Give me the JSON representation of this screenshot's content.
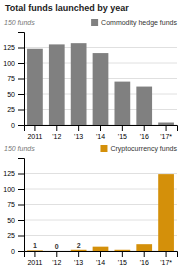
{
  "chart_data": [
    {
      "type": "bar",
      "title": "Total funds launched by year",
      "ylabel": "150 funds",
      "categories": [
        "2011",
        "'12",
        "'13",
        "'14",
        "'15",
        "'16",
        "'17*"
      ],
      "series": [
        {
          "name": "Commodity hedge funds",
          "color": "#808080",
          "values": [
            123,
            130,
            132,
            116,
            70,
            62,
            4
          ]
        }
      ],
      "ylim": [
        0,
        150
      ],
      "yticks": [
        0,
        25,
        50,
        75,
        100,
        125
      ],
      "grid": true,
      "legend": "upper right"
    },
    {
      "type": "bar",
      "ylabel": "150 funds",
      "categories": [
        "2011",
        "'12",
        "'13",
        "'14",
        "'15",
        "'16",
        "'17*"
      ],
      "series": [
        {
          "name": "Cryptocurrency funds",
          "color": "#D4900A",
          "values": [
            1,
            0,
            2,
            7,
            2,
            11,
            124
          ],
          "value_labels": [
            "1",
            "0",
            "2",
            null,
            null,
            null,
            null
          ]
        }
      ],
      "ylim": [
        0,
        150
      ],
      "yticks": [
        0,
        25,
        50,
        75,
        100,
        125
      ],
      "grid": true,
      "legend": "upper right",
      "data_labels": true
    }
  ]
}
